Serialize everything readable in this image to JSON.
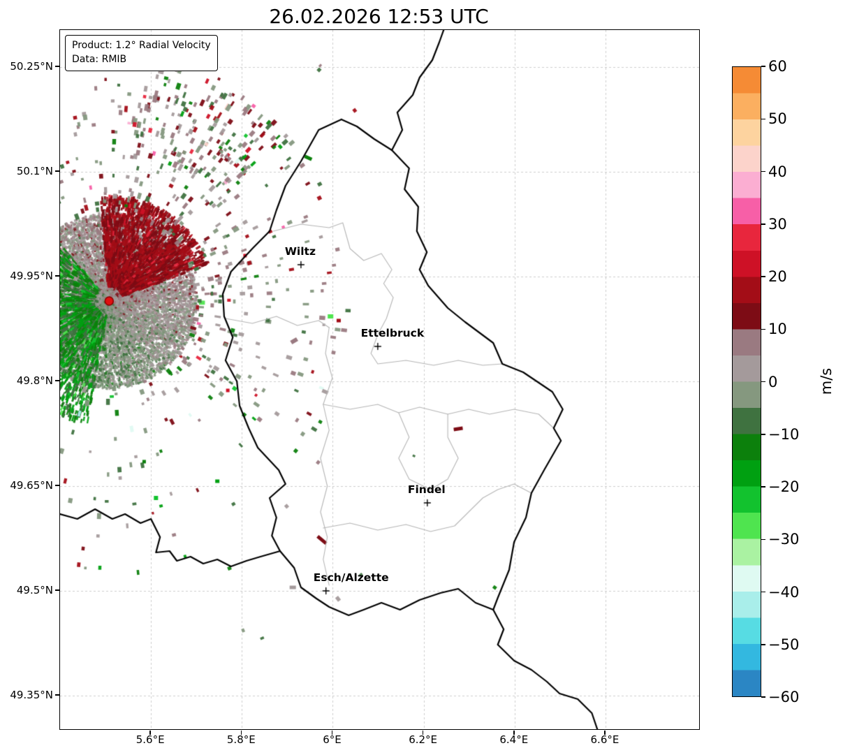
{
  "title": "26.02.2026 12:53 UTC",
  "info_box": {
    "line1": "Product: 1.2° Radial Velocity",
    "line2": "Data: RMIB"
  },
  "colorbar": {
    "label": "m/s",
    "ticks": [
      {
        "label": "60",
        "value": 60
      },
      {
        "label": "50",
        "value": 50
      },
      {
        "label": "40",
        "value": 40
      },
      {
        "label": "30",
        "value": 30
      },
      {
        "label": "20",
        "value": 20
      },
      {
        "label": "10",
        "value": 10
      },
      {
        "label": "0",
        "value": 0
      },
      {
        "label": "−10",
        "value": -10
      },
      {
        "label": "−20",
        "value": -20
      },
      {
        "label": "−30",
        "value": -30
      },
      {
        "label": "−40",
        "value": -40
      },
      {
        "label": "−50",
        "value": -50
      },
      {
        "label": "−60",
        "value": -60
      }
    ],
    "bands": [
      {
        "from": -60,
        "to": -55,
        "color": "#2b86c4"
      },
      {
        "from": -55,
        "to": -50,
        "color": "#33b8e0"
      },
      {
        "from": -50,
        "to": -45,
        "color": "#57dce3"
      },
      {
        "from": -45,
        "to": -40,
        "color": "#a9eeea"
      },
      {
        "from": -40,
        "to": -35,
        "color": "#dffaf2"
      },
      {
        "from": -35,
        "to": -30,
        "color": "#aaf2a2"
      },
      {
        "from": -30,
        "to": -25,
        "color": "#4fe44f"
      },
      {
        "from": -25,
        "to": -20,
        "color": "#12c22e"
      },
      {
        "from": -20,
        "to": -15,
        "color": "#00a011"
      },
      {
        "from": -15,
        "to": -10,
        "color": "#0c800c"
      },
      {
        "from": -10,
        "to": -5,
        "color": "#3f7240"
      },
      {
        "from": -5,
        "to": 0,
        "color": "#85987f"
      },
      {
        "from": 0,
        "to": 5,
        "color": "#a49a9b"
      },
      {
        "from": 5,
        "to": 10,
        "color": "#9a7a81"
      },
      {
        "from": 10,
        "to": 15,
        "color": "#7d0c15"
      },
      {
        "from": 15,
        "to": 20,
        "color": "#a30d17"
      },
      {
        "from": 20,
        "to": 25,
        "color": "#ce1126"
      },
      {
        "from": 25,
        "to": 30,
        "color": "#e8263d"
      },
      {
        "from": 30,
        "to": 35,
        "color": "#f75fa7"
      },
      {
        "from": 35,
        "to": 40,
        "color": "#fbaed2"
      },
      {
        "from": 40,
        "to": 45,
        "color": "#fcd3cb"
      },
      {
        "from": 45,
        "to": 50,
        "color": "#fdd39f"
      },
      {
        "from": 50,
        "to": 55,
        "color": "#fbaf60"
      },
      {
        "from": 55,
        "to": 60,
        "color": "#f58b35"
      }
    ]
  },
  "axes": {
    "lon_range": [
      5.4,
      6.806
    ],
    "lat_range": [
      49.302,
      50.303
    ],
    "x_ticks": [
      {
        "label": "5.6°E",
        "value": 5.6
      },
      {
        "label": "5.8°E",
        "value": 5.8
      },
      {
        "label": "6°E",
        "value": 6.0
      },
      {
        "label": "6.2°E",
        "value": 6.2
      },
      {
        "label": "6.4°E",
        "value": 6.4
      },
      {
        "label": "6.6°E",
        "value": 6.6
      }
    ],
    "y_ticks": [
      {
        "label": "50.25°N",
        "value": 50.25
      },
      {
        "label": "50.1°N",
        "value": 50.1
      },
      {
        "label": "49.95°N",
        "value": 49.95
      },
      {
        "label": "49.8°N",
        "value": 49.8
      },
      {
        "label": "49.65°N",
        "value": 49.65
      },
      {
        "label": "49.5°N",
        "value": 49.5
      },
      {
        "label": "49.35°N",
        "value": 49.35
      }
    ]
  },
  "cities": [
    {
      "name": "Wiltz",
      "lon": 5.93,
      "lat": 49.967,
      "label_dx": 0
    },
    {
      "name": "Ettelbruck",
      "lon": 6.099,
      "lat": 49.85,
      "label_dx": 22
    },
    {
      "name": "Findel",
      "lon": 6.208,
      "lat": 49.626,
      "label_dx": 0
    },
    {
      "name": "Esch/Alzette",
      "lon": 5.985,
      "lat": 49.5,
      "label_dx": 37
    }
  ],
  "radar": {
    "site": {
      "lon": 5.508,
      "lat": 49.915,
      "marker_color": "#e01010",
      "marker_edge": "#8b0000"
    },
    "echoes": [
      {
        "lon": 6.276,
        "lat": 49.732,
        "v": 14,
        "w": 13,
        "h": 5,
        "rot": -8
      },
      {
        "lon": 5.976,
        "lat": 49.573,
        "v": 14,
        "w": 16,
        "h": 5,
        "rot": 40
      },
      {
        "lon": 5.912,
        "lat": 49.505,
        "v": 3,
        "w": 9,
        "h": 5,
        "rot": 0
      },
      {
        "lon": 5.769,
        "lat": 49.787,
        "v": 22,
        "w": 5,
        "h": 5,
        "rot": 0
      },
      {
        "lon": 5.946,
        "lat": 50.12,
        "v": -13,
        "w": 11,
        "h": 5,
        "rot": 25
      },
      {
        "lon": 5.995,
        "lat": 49.893,
        "v": -27,
        "w": 8,
        "h": 6,
        "rot": 0
      },
      {
        "lon": 6.013,
        "lat": 49.887,
        "v": 18,
        "w": 6,
        "h": 5,
        "rot": 0
      },
      {
        "lon": 5.807,
        "lat": 49.98,
        "v": 20,
        "w": 5,
        "h": 5,
        "rot": 0
      },
      {
        "lon": 5.915,
        "lat": 49.858,
        "v": 7,
        "w": 10,
        "h": 6,
        "rot": -30
      },
      {
        "lon": 5.746,
        "lat": 49.657,
        "v": -18,
        "w": 6,
        "h": 5,
        "rot": 0
      },
      {
        "lon": 5.611,
        "lat": 49.633,
        "v": -22,
        "w": 6,
        "h": 6,
        "rot": 0
      },
      {
        "lon": 5.585,
        "lat": 49.685,
        "v": -15,
        "w": 5,
        "h": 5,
        "rot": 0
      }
    ]
  },
  "map": {
    "country_borders": [
      [
        [
          6.019,
          50.175
        ],
        [
          6.053,
          50.165
        ],
        [
          6.091,
          50.147
        ],
        [
          6.13,
          50.131
        ],
        [
          6.168,
          50.105
        ],
        [
          6.158,
          50.075
        ],
        [
          6.188,
          50.05
        ],
        [
          6.185,
          50.015
        ],
        [
          6.207,
          49.985
        ],
        [
          6.191,
          49.96
        ],
        [
          6.21,
          49.937
        ],
        [
          6.253,
          49.905
        ],
        [
          6.291,
          49.885
        ],
        [
          6.353,
          49.855
        ],
        [
          6.373,
          49.825
        ],
        [
          6.419,
          49.813
        ],
        [
          6.483,
          49.785
        ],
        [
          6.506,
          49.76
        ],
        [
          6.486,
          49.733
        ],
        [
          6.502,
          49.715
        ],
        [
          6.465,
          49.673
        ],
        [
          6.437,
          49.64
        ],
        [
          6.425,
          49.605
        ],
        [
          6.399,
          49.57
        ],
        [
          6.388,
          49.53
        ],
        [
          6.363,
          49.49
        ],
        [
          6.353,
          49.473
        ],
        [
          6.314,
          49.483
        ],
        [
          6.276,
          49.503
        ],
        [
          6.237,
          49.497
        ],
        [
          6.191,
          49.487
        ],
        [
          6.148,
          49.473
        ],
        [
          6.107,
          49.483
        ],
        [
          6.068,
          49.473
        ],
        [
          6.035,
          49.465
        ],
        [
          5.992,
          49.477
        ],
        [
          5.964,
          49.489
        ],
        [
          5.93,
          49.505
        ],
        [
          5.915,
          49.533
        ],
        [
          5.884,
          49.557
        ],
        [
          5.866,
          49.579
        ],
        [
          5.876,
          49.605
        ],
        [
          5.861,
          49.633
        ],
        [
          5.896,
          49.653
        ],
        [
          5.881,
          49.673
        ],
        [
          5.835,
          49.705
        ],
        [
          5.815,
          49.733
        ],
        [
          5.795,
          49.765
        ],
        [
          5.789,
          49.8
        ],
        [
          5.764,
          49.83
        ],
        [
          5.78,
          49.863
        ],
        [
          5.761,
          49.893
        ],
        [
          5.758,
          49.925
        ],
        [
          5.776,
          49.957
        ],
        [
          5.823,
          49.99
        ],
        [
          5.861,
          50.015
        ],
        [
          5.876,
          50.045
        ],
        [
          5.896,
          50.08
        ],
        [
          5.93,
          50.115
        ],
        [
          5.969,
          50.16
        ],
        [
          6.019,
          50.175
        ]
      ],
      [
        [
          6.13,
          50.131
        ],
        [
          6.153,
          50.16
        ],
        [
          6.142,
          50.185
        ],
        [
          6.176,
          50.21
        ],
        [
          6.191,
          50.235
        ],
        [
          6.219,
          50.26
        ],
        [
          6.234,
          50.285
        ],
        [
          6.245,
          50.305
        ]
      ],
      [
        [
          6.353,
          49.473
        ],
        [
          6.376,
          49.445
        ],
        [
          6.363,
          49.423
        ],
        [
          6.399,
          49.4
        ],
        [
          6.437,
          49.387
        ],
        [
          6.471,
          49.37
        ],
        [
          6.499,
          49.353
        ],
        [
          6.539,
          49.345
        ],
        [
          6.57,
          49.325
        ],
        [
          6.583,
          49.3
        ]
      ],
      [
        [
          5.4,
          49.61
        ],
        [
          5.438,
          49.603
        ],
        [
          5.477,
          49.617
        ],
        [
          5.515,
          49.603
        ],
        [
          5.543,
          49.61
        ],
        [
          5.577,
          49.597
        ],
        [
          5.6,
          49.603
        ],
        [
          5.62,
          49.577
        ],
        [
          5.611,
          49.555
        ],
        [
          5.641,
          49.557
        ],
        [
          5.657,
          49.543
        ],
        [
          5.687,
          49.549
        ],
        [
          5.715,
          49.539
        ],
        [
          5.746,
          49.545
        ],
        [
          5.776,
          49.535
        ],
        [
          5.81,
          49.543
        ],
        [
          5.841,
          49.549
        ],
        [
          5.884,
          49.557
        ]
      ]
    ],
    "internal_borders": [
      [
        [
          5.869,
          50.015
        ],
        [
          5.93,
          50.025
        ],
        [
          5.992,
          50.02
        ],
        [
          6.022,
          50.027
        ],
        [
          6.038,
          49.99
        ],
        [
          6.068,
          49.973
        ],
        [
          6.107,
          49.983
        ],
        [
          6.13,
          49.96
        ],
        [
          6.112,
          49.94
        ],
        [
          6.133,
          49.92
        ],
        [
          6.118,
          49.89
        ],
        [
          6.099,
          49.867
        ]
      ],
      [
        [
          5.764,
          49.89
        ],
        [
          5.823,
          49.883
        ],
        [
          5.876,
          49.893
        ],
        [
          5.922,
          49.88
        ],
        [
          5.969,
          49.887
        ],
        [
          5.992,
          49.877
        ]
      ],
      [
        [
          5.992,
          49.877
        ],
        [
          5.984,
          49.84
        ],
        [
          5.999,
          49.805
        ],
        [
          5.979,
          49.767
        ],
        [
          5.992,
          49.73
        ],
        [
          5.973,
          49.69
        ],
        [
          5.988,
          49.65
        ],
        [
          5.973,
          49.613
        ],
        [
          5.988,
          49.577
        ],
        [
          5.979,
          49.545
        ],
        [
          5.992,
          49.508
        ]
      ],
      [
        [
          6.099,
          49.867
        ],
        [
          6.084,
          49.84
        ],
        [
          6.099,
          49.825
        ],
        [
          6.161,
          49.83
        ],
        [
          6.222,
          49.823
        ],
        [
          6.276,
          49.83
        ],
        [
          6.33,
          49.823
        ],
        [
          6.373,
          49.825
        ]
      ],
      [
        [
          5.979,
          49.767
        ],
        [
          6.038,
          49.76
        ],
        [
          6.099,
          49.767
        ],
        [
          6.145,
          49.755
        ],
        [
          6.191,
          49.763
        ],
        [
          6.253,
          49.753
        ],
        [
          6.299,
          49.76
        ],
        [
          6.345,
          49.753
        ],
        [
          6.399,
          49.76
        ],
        [
          6.453,
          49.753
        ],
        [
          6.486,
          49.733
        ]
      ],
      [
        [
          5.979,
          49.59
        ],
        [
          6.038,
          49.597
        ],
        [
          6.099,
          49.587
        ],
        [
          6.161,
          49.595
        ],
        [
          6.215,
          49.585
        ],
        [
          6.268,
          49.593
        ],
        [
          6.302,
          49.615
        ],
        [
          6.33,
          49.633
        ],
        [
          6.363,
          49.645
        ],
        [
          6.399,
          49.653
        ],
        [
          6.437,
          49.64
        ]
      ],
      [
        [
          6.145,
          49.755
        ],
        [
          6.168,
          49.72
        ],
        [
          6.145,
          49.69
        ],
        [
          6.168,
          49.66
        ],
        [
          6.215,
          49.645
        ],
        [
          6.253,
          49.66
        ],
        [
          6.276,
          49.69
        ],
        [
          6.253,
          49.72
        ],
        [
          6.253,
          49.753
        ]
      ]
    ]
  },
  "style": {
    "grid_color": "#cccccc",
    "border_color": "#000000",
    "internal_border_color": "#b5b5b5",
    "background": "#ffffff"
  },
  "chart_data": {
    "type": "heatmap",
    "title": "26.02.2026 12:53 UTC",
    "product": "1.2° Radial Velocity",
    "source": "RMIB",
    "units": "m/s",
    "value_range": [
      -60,
      60
    ],
    "colorbar_ticks": [
      60,
      50,
      40,
      30,
      20,
      10,
      0,
      -10,
      -20,
      -30,
      -40,
      -50,
      -60
    ],
    "lon_range": [
      5.4,
      6.806
    ],
    "lat_range": [
      49.302,
      50.303
    ],
    "radar_site": {
      "lon": 5.508,
      "lat": 49.915
    },
    "legend_position": "right",
    "grid": true
  }
}
